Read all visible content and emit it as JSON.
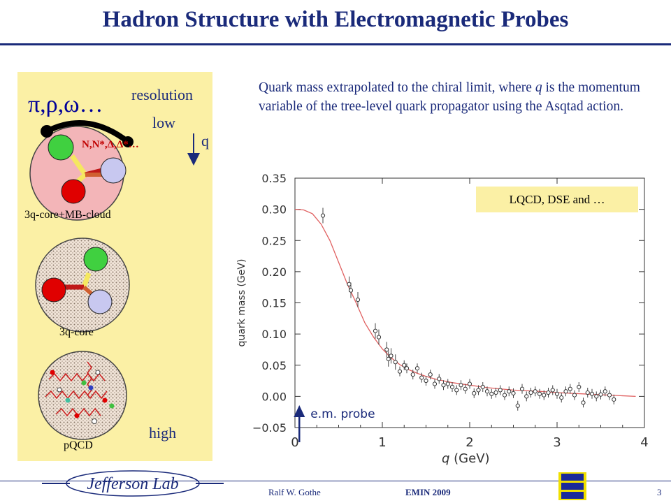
{
  "slide": {
    "title": "Hadron Structure with Electromagnetic Probes",
    "description_before": "Quark mass extrapolated to the chiral limit, where ",
    "description_q": "q",
    "description_after": " is the momentum variable of the tree-level quark propagator using the Asqtad action.",
    "chart_label_box": "LQCD, DSE and …",
    "em_probe_label": "e.m. probe"
  },
  "left_panel": {
    "mesons_label": "π,ρ,ω…",
    "baryons_label": "N,N*,Δ,Δ*…",
    "resolution_label": "resolution",
    "low_label": "low",
    "q_label": "q",
    "high_label": "high",
    "model1_caption": "3q-core+MB-cloud",
    "model2_caption": "3q-core",
    "model3_caption": "pQCD"
  },
  "footer": {
    "author": "Ralf  W. Gothe",
    "event": "EMIN 2009",
    "page_number": "3",
    "logo_text": "Jefferson Lab"
  },
  "chart_data": {
    "type": "scatter",
    "xlabel_var": "q",
    "xlabel_unit": "(GeV)",
    "ylabel": "quark mass (GeV)",
    "xlim": [
      0,
      4
    ],
    "ylim": [
      -0.05,
      0.35
    ],
    "x_ticks": [
      "0",
      "1",
      "2",
      "3",
      "4"
    ],
    "y_ticks": [
      "−0.05",
      "0.00",
      "0.05",
      "0.10",
      "0.15",
      "0.20",
      "0.25",
      "0.30",
      "0.35"
    ],
    "fit_curve": {
      "color": "#e06060",
      "x": [
        0.0,
        0.1,
        0.2,
        0.3,
        0.4,
        0.5,
        0.6,
        0.7,
        0.8,
        0.9,
        1.0,
        1.1,
        1.2,
        1.3,
        1.4,
        1.5,
        1.6,
        1.8,
        2.0,
        2.2,
        2.5,
        2.8,
        3.0,
        3.3,
        3.6,
        3.9
      ],
      "y": [
        0.3,
        0.299,
        0.293,
        0.276,
        0.25,
        0.215,
        0.18,
        0.15,
        0.118,
        0.095,
        0.076,
        0.062,
        0.051,
        0.043,
        0.037,
        0.032,
        0.028,
        0.022,
        0.018,
        0.014,
        0.01,
        0.008,
        0.006,
        0.004,
        0.002,
        0.0
      ]
    },
    "points": {
      "x": [
        0.32,
        0.62,
        0.64,
        0.72,
        0.92,
        0.96,
        1.05,
        1.07,
        1.1,
        1.15,
        1.2,
        1.25,
        1.28,
        1.35,
        1.4,
        1.45,
        1.5,
        1.55,
        1.6,
        1.65,
        1.7,
        1.75,
        1.8,
        1.85,
        1.9,
        1.95,
        2.0,
        2.05,
        2.1,
        2.15,
        2.2,
        2.25,
        2.3,
        2.35,
        2.4,
        2.45,
        2.5,
        2.55,
        2.6,
        2.65,
        2.7,
        2.75,
        2.8,
        2.85,
        2.9,
        2.95,
        3.0,
        3.05,
        3.1,
        3.15,
        3.2,
        3.25,
        3.3,
        3.35,
        3.4,
        3.45,
        3.5,
        3.55,
        3.6,
        3.65
      ],
      "y": [
        0.29,
        0.18,
        0.17,
        0.155,
        0.105,
        0.095,
        0.075,
        0.06,
        0.065,
        0.055,
        0.04,
        0.05,
        0.045,
        0.035,
        0.045,
        0.03,
        0.025,
        0.035,
        0.02,
        0.028,
        0.018,
        0.02,
        0.015,
        0.01,
        0.018,
        0.012,
        0.02,
        0.005,
        0.01,
        0.015,
        0.008,
        0.004,
        0.006,
        0.01,
        0.002,
        0.008,
        0.005,
        -0.015,
        0.012,
        0.0,
        0.006,
        0.008,
        0.004,
        0.002,
        0.006,
        0.01,
        0.004,
        -0.002,
        0.008,
        0.012,
        0.002,
        0.015,
        -0.01,
        0.006,
        0.004,
        0.0,
        0.003,
        0.008,
        0.002,
        -0.005
      ]
    }
  }
}
